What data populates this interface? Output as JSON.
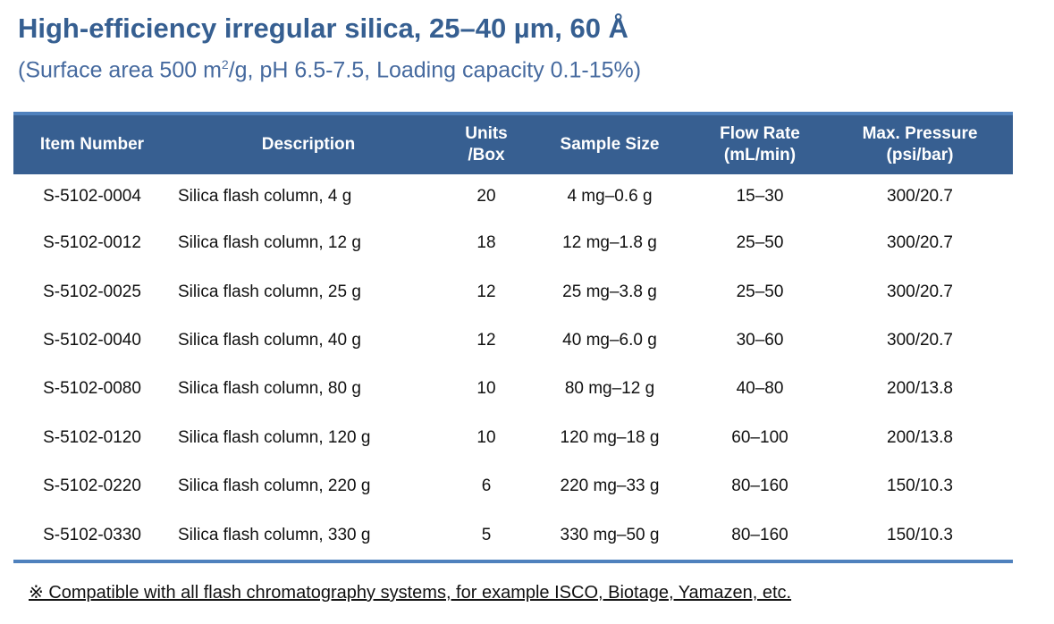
{
  "title": "High-efficiency irregular silica, 25–40 µm, 60 Å",
  "subtitle": {
    "pre": "(Surface area 500 m",
    "sup": "2",
    "post": "/g, pH 6.5-7.5, Loading capacity 0.1-15%)"
  },
  "colors": {
    "header_bg": "#375f91",
    "accent": "#4f81bd",
    "title": "#365f91"
  },
  "table": {
    "headers": [
      {
        "line1": "Item Number",
        "line2": ""
      },
      {
        "line1": "Description",
        "line2": ""
      },
      {
        "line1": "Units",
        "line2": "/Box"
      },
      {
        "line1": "Sample Size",
        "line2": ""
      },
      {
        "line1": "Flow Rate",
        "line2": "(mL/min)"
      },
      {
        "line1": "Max. Pressure",
        "line2": "(psi/bar)"
      }
    ],
    "rows": [
      [
        "S-5102-0004",
        "Silica flash column, 4 g",
        "20",
        "4 mg–0.6 g",
        "15–30",
        "300/20.7"
      ],
      [
        "S-5102-0012",
        "Silica flash column, 12 g",
        "18",
        "12 mg–1.8 g",
        "25–50",
        "300/20.7"
      ],
      [
        "S-5102-0025",
        "Silica flash column, 25 g",
        "12",
        "25 mg–3.8 g",
        "25–50",
        "300/20.7"
      ],
      [
        "S-5102-0040",
        "Silica flash column, 40 g",
        "12",
        "40 mg–6.0 g",
        "30–60",
        "300/20.7"
      ],
      [
        "S-5102-0080",
        "Silica flash column, 80 g",
        "10",
        "80 mg–12 g",
        "40–80",
        "200/13.8"
      ],
      [
        "S-5102-0120",
        "Silica flash column, 120 g",
        "10",
        "120 mg–18 g",
        "60–100",
        "200/13.8"
      ],
      [
        "S-5102-0220",
        "Silica flash column, 220 g",
        "6",
        "220 mg–33 g",
        "80–160",
        "150/10.3"
      ],
      [
        "S-5102-0330",
        "Silica flash column, 330 g",
        "5",
        "330 mg–50 g",
        "80–160",
        "150/10.3"
      ]
    ]
  },
  "note": "※ Compatible with all flash chromatography systems, for example ISCO, Biotage, Yamazen, etc."
}
